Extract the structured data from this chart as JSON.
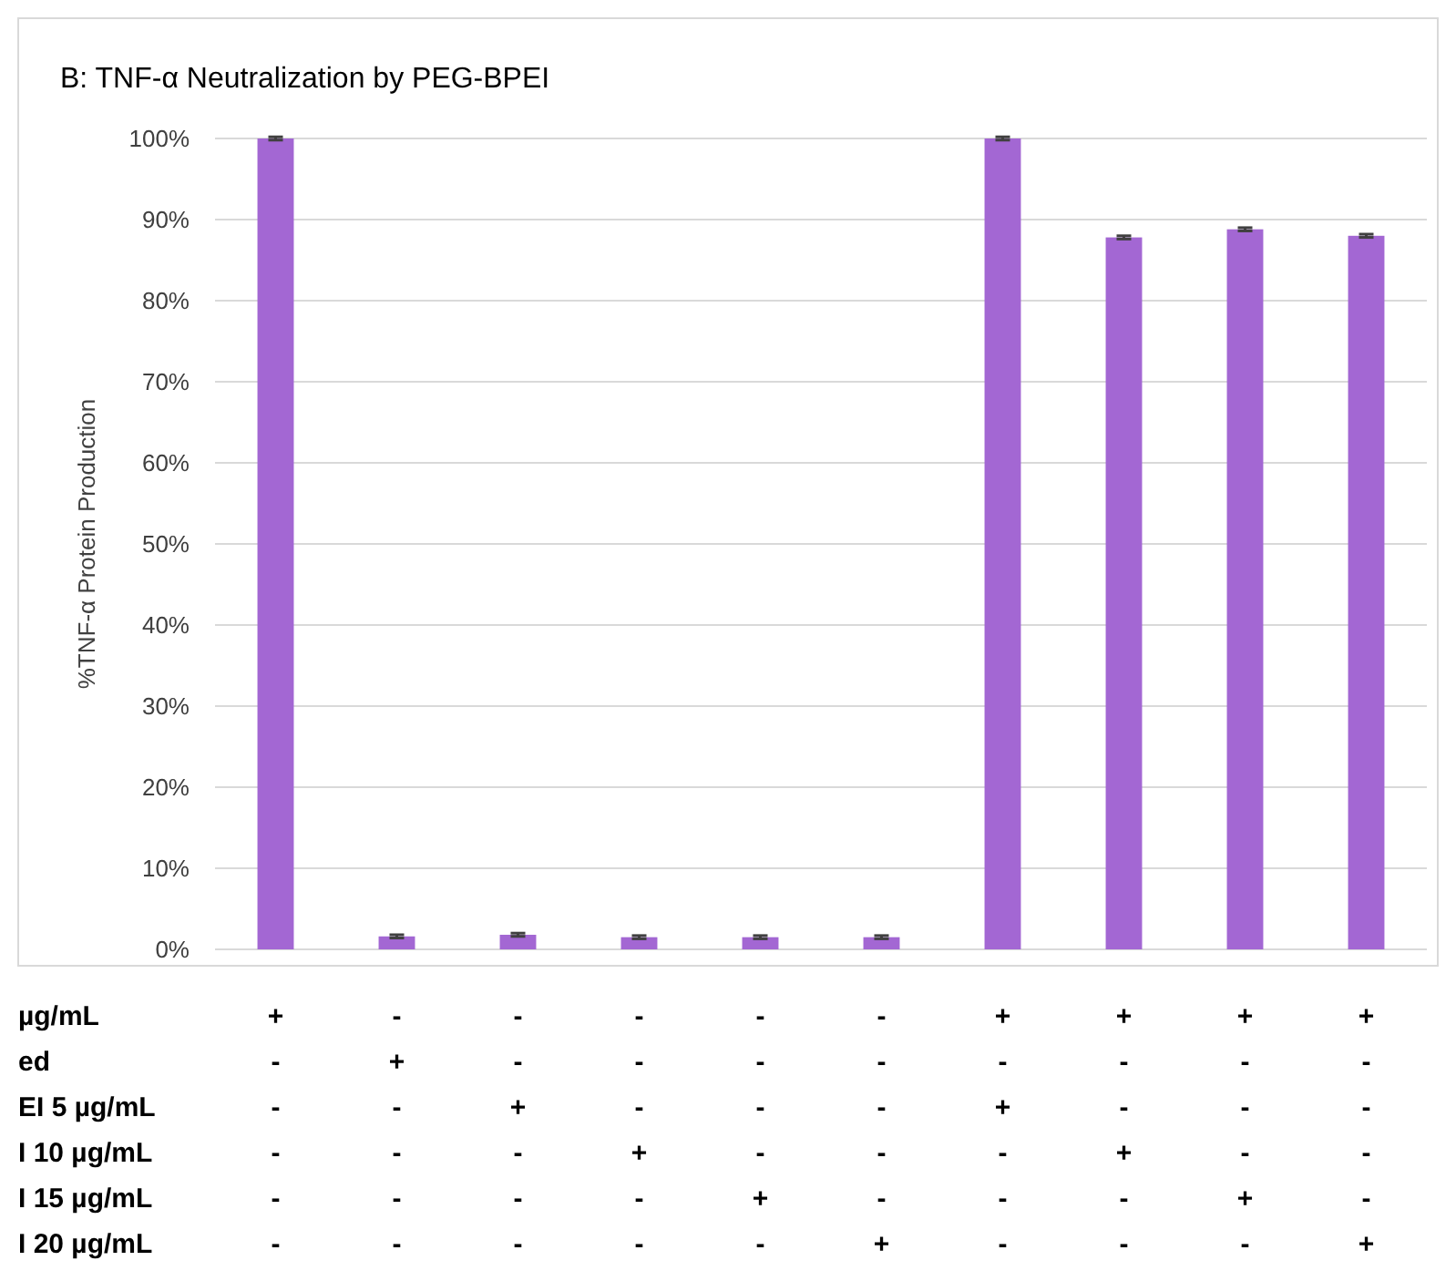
{
  "chart_data": {
    "type": "bar",
    "title": "B: TNF-α Neutralization by PEG-BPEI",
    "ylabel": "%TNF-α Protein Production",
    "categories": [
      "+\n-\n-\n-\n-\n-",
      "-\n+\n-\n-\n-\n-",
      "-\n-\n+\n-\n-\n-",
      "-\n-\n-\n+\n-\n-",
      "-\n-\n-\n-\n+\n-",
      "-\n-\n-\n-\n-\n+",
      "+\n-\n+\n-\n-\n-",
      "+\n-\n-\n+\n-\n-",
      "+\n-\n-\n-\n+\n-",
      "+\n-\n-\n-\n-\n+"
    ],
    "values": [
      100,
      1.6,
      1.8,
      1.5,
      1.5,
      1.5,
      100,
      87.8,
      88.8,
      88.0
    ],
    "errors": [
      0.2,
      0.2,
      0.2,
      0.2,
      0.2,
      0.2,
      0.2,
      0.2,
      0.2,
      0.2
    ],
    "color": "#a367d3",
    "ylim": [
      0,
      100
    ],
    "yticks": [
      {
        "value": 0,
        "label": "0%"
      },
      {
        "value": 10,
        "label": "10%"
      },
      {
        "value": 20,
        "label": "20%"
      },
      {
        "value": 30,
        "label": "30%"
      },
      {
        "value": 40,
        "label": "40%"
      },
      {
        "value": 50,
        "label": "50%"
      },
      {
        "value": 60,
        "label": "60%"
      },
      {
        "value": 70,
        "label": "70%"
      },
      {
        "value": 80,
        "label": "80%"
      },
      {
        "value": 90,
        "label": "90%"
      },
      {
        "value": 100,
        "label": "100%"
      }
    ],
    "grid": "y",
    "annotations": [
      "µg/mL",
      "ed",
      "EI 5 µg/mL",
      "I 10 µg/mL",
      "I 15 µg/mL",
      "I 20 µg/mL"
    ]
  }
}
